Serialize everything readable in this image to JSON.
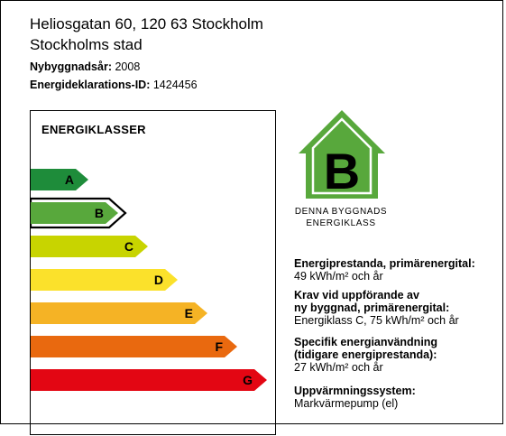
{
  "address": {
    "line1": "Heliosgatan 60, 120 63 Stockholm",
    "line2": "Stockholms stad"
  },
  "meta": {
    "build_year_label": "Nybyggnadsår:",
    "build_year_value": "2008",
    "decl_id_label": "Energideklarations-ID:",
    "decl_id_value": "1424456"
  },
  "energy_classes": {
    "title": "ENERGIKLASSER",
    "current": "B",
    "classes": [
      {
        "letter": "A",
        "color": "#1e8c3a"
      },
      {
        "letter": "B",
        "color": "#58a83c"
      },
      {
        "letter": "C",
        "color": "#c8d400"
      },
      {
        "letter": "D",
        "color": "#fbe12b"
      },
      {
        "letter": "E",
        "color": "#f5b325"
      },
      {
        "letter": "F",
        "color": "#e9690f"
      },
      {
        "letter": "G",
        "color": "#e30613"
      }
    ]
  },
  "badge": {
    "letter": "B",
    "color": "#58a83c",
    "caption_line1": "DENNA BYGGNADS",
    "caption_line2": "ENERGIKLASS"
  },
  "info": {
    "prim_heading_1": "Energiprestanda, primärenergital:",
    "prim_value": "49 kWh/m² och år",
    "req_heading_1": "Krav vid uppförande av",
    "req_heading_2": "ny byggnad, primärenergital:",
    "req_value": "Energiklass C, 75 kWh/m² och år",
    "spec_heading_1": "Specifik energianvändning",
    "spec_heading_2": "(tidigare energiprestanda):",
    "spec_value": "27 kWh/m² och år",
    "heat_heading": "Uppvärmningssystem:",
    "heat_value": "Markvärmepump (el)"
  }
}
